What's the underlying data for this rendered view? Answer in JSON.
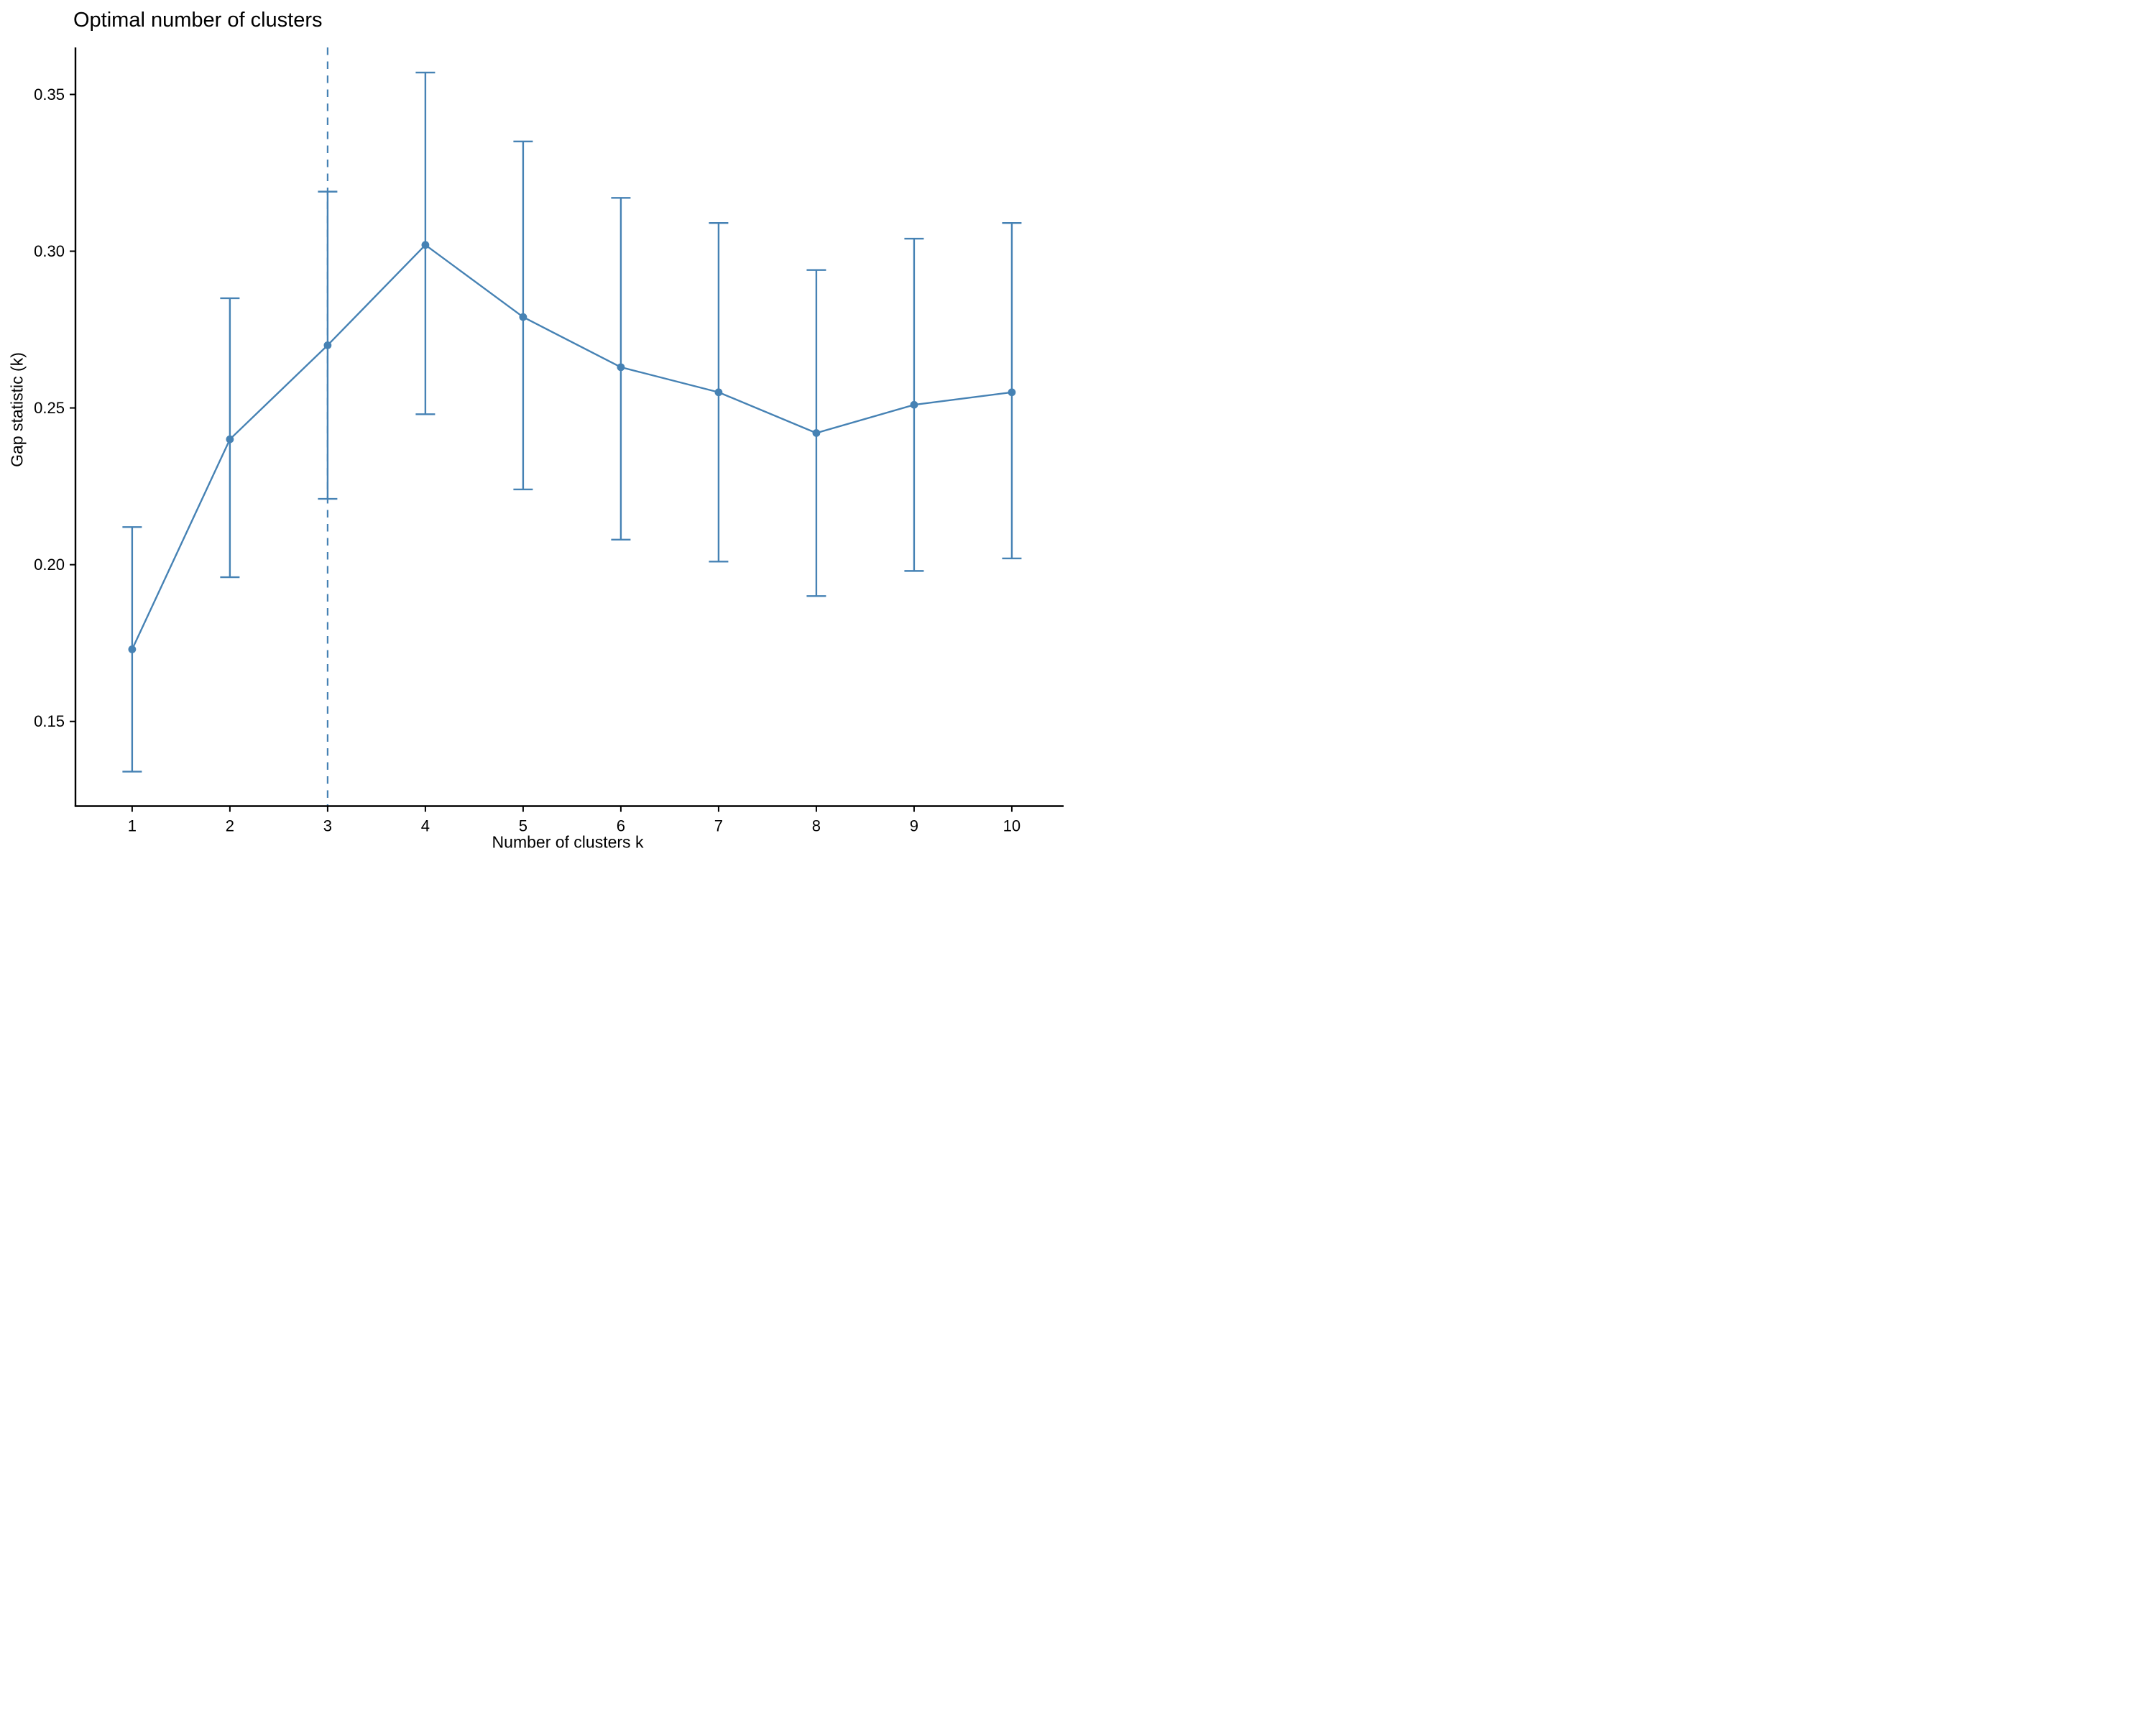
{
  "chart": {
    "background_color": "#ffffff",
    "accent_color": "#4682B4",
    "axis_color": "#000000",
    "optimal_k_label": "3"
  },
  "chart_data": {
    "type": "line",
    "title": "Optimal number of clusters",
    "xlabel": "Number of clusters k",
    "ylabel": "Gap statistic (k)",
    "x": [
      1,
      2,
      3,
      4,
      5,
      6,
      7,
      8,
      9,
      10
    ],
    "series": [
      {
        "name": "Gap statistic",
        "values": [
          0.173,
          0.24,
          0.27,
          0.302,
          0.279,
          0.263,
          0.255,
          0.242,
          0.251,
          0.255
        ]
      }
    ],
    "error_low": [
      0.134,
      0.196,
      0.221,
      0.248,
      0.224,
      0.208,
      0.201,
      0.19,
      0.198,
      0.202
    ],
    "error_high": [
      0.212,
      0.285,
      0.319,
      0.357,
      0.335,
      0.317,
      0.309,
      0.294,
      0.304,
      0.309
    ],
    "x_tick_labels": [
      "1",
      "2",
      "3",
      "4",
      "5",
      "6",
      "7",
      "8",
      "9",
      "10"
    ],
    "y_ticks": [
      0.15,
      0.2,
      0.25,
      0.3,
      0.35
    ],
    "y_tick_labels": [
      "0.15",
      "0.20",
      "0.25",
      "0.30",
      "0.35"
    ],
    "xlim": [
      0.42,
      10.53
    ],
    "ylim": [
      0.123,
      0.365
    ],
    "vline": {
      "x": 3,
      "style": "dashed"
    },
    "grid": false,
    "legend_position": "none",
    "colors": {
      "series": "#4682B4",
      "axis": "#000000"
    }
  }
}
